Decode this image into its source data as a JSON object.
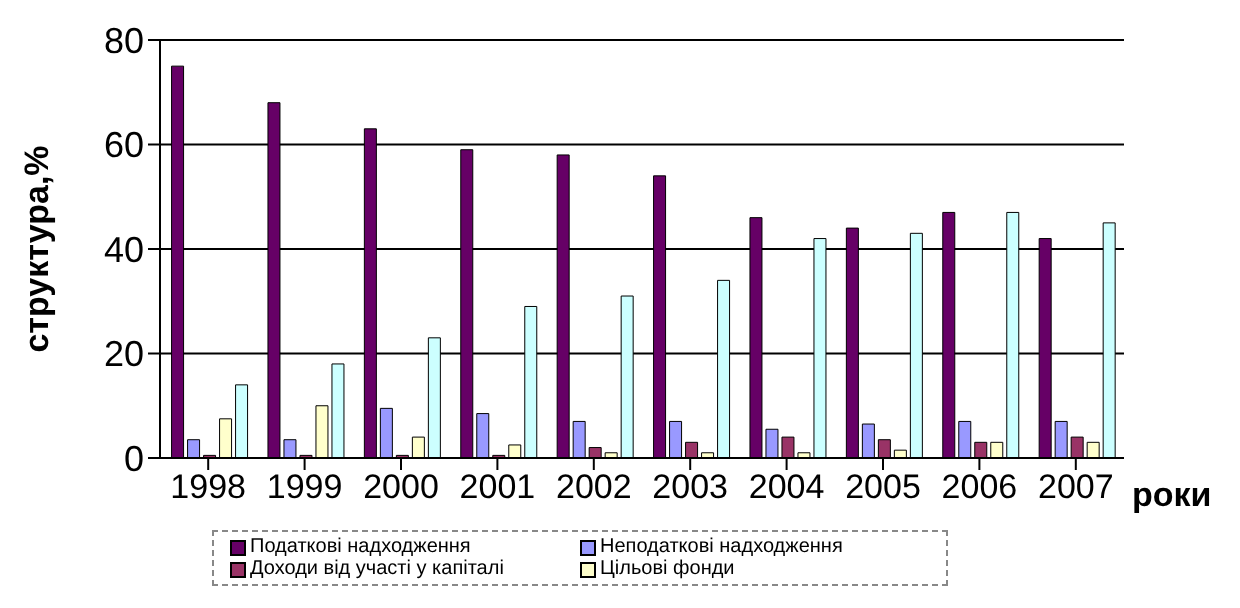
{
  "chart_data": {
    "type": "bar",
    "xlabel": "роки",
    "ylabel": "структура,%",
    "categories": [
      "1998",
      "1999",
      "2000",
      "2001",
      "2002",
      "2003",
      "2004",
      "2005",
      "2006",
      "2007"
    ],
    "series": [
      {
        "name": "Податкові надходження",
        "color": "#660066",
        "values": [
          75,
          68,
          63,
          59,
          58,
          54,
          46,
          44,
          47,
          42
        ]
      },
      {
        "name": "Неподаткові надходження",
        "color": "#9999ff",
        "values": [
          3.5,
          3.5,
          9.5,
          8.5,
          7,
          7,
          5.5,
          6.5,
          7,
          7
        ]
      },
      {
        "name": "Доходи від участі у капіталі",
        "color": "#993366",
        "values": [
          0.5,
          0.5,
          0.5,
          0.5,
          2,
          3,
          4,
          3.5,
          3,
          4
        ]
      },
      {
        "name": "Цільові фонди",
        "color": "#ffffcc",
        "values": [
          7.5,
          10,
          4,
          2.5,
          1,
          1,
          1,
          1.5,
          3,
          3
        ]
      },
      {
        "color": "#ccffff",
        "values": [
          14,
          18,
          23,
          29,
          31,
          34,
          42,
          43,
          47,
          45
        ]
      }
    ],
    "ylim": [
      0,
      80
    ],
    "yticks": [
      0,
      20,
      40,
      60,
      80
    ],
    "grid": "y",
    "legend": "bottom"
  }
}
